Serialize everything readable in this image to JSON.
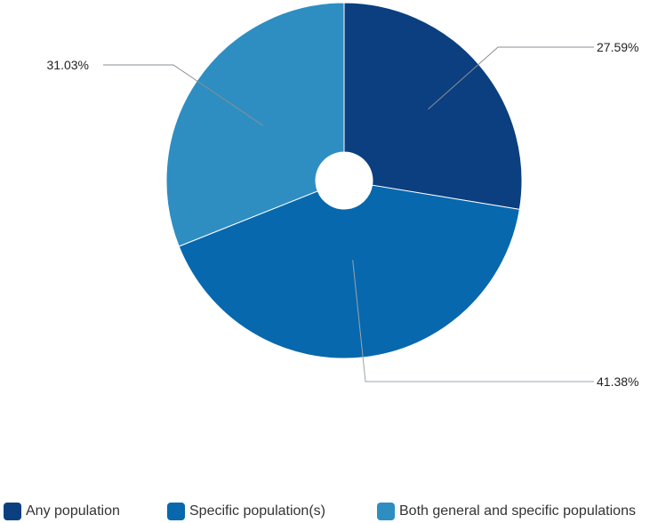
{
  "chart_data": {
    "type": "pie",
    "donut": true,
    "title": "",
    "categories": [
      "Any population",
      "Specific population(s)",
      "Both general and specific populations"
    ],
    "values": [
      27.59,
      41.38,
      31.03
    ],
    "value_labels": [
      "27.59%",
      "41.38%",
      "31.03%"
    ],
    "colors": [
      "#0b3f80",
      "#0868ad",
      "#2e8ec1"
    ],
    "start_angle_deg": 0,
    "direction": "clockwise",
    "legend_position": "bottom-left"
  }
}
